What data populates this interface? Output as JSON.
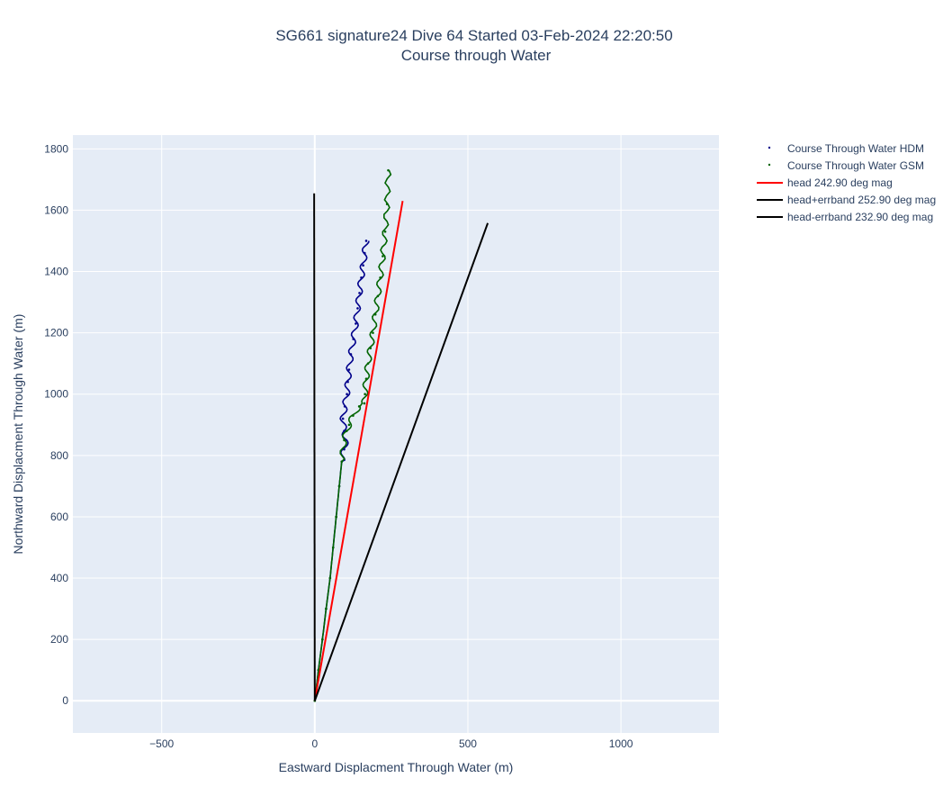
{
  "chart_data": {
    "type": "line",
    "title": "SG661 signature24 Dive 64 Started 03-Feb-2024 22:20:50",
    "subtitle": "Course through Water",
    "xlabel": "Eastward Displacment Through Water (m)",
    "ylabel": "Northward Displacment Through Water (m)",
    "xlim": [
      -790,
      1320
    ],
    "ylim": [
      -105,
      1845
    ],
    "xticks": [
      -500,
      0,
      500,
      1000
    ],
    "yticks": [
      0,
      200,
      400,
      600,
      800,
      1000,
      1200,
      1400,
      1600,
      1800
    ],
    "grid": true,
    "legend_position": "top-right, outside plot",
    "plot_bg_color": "#e5ecf6",
    "series": [
      {
        "name": "Course Through Water HDM",
        "mode": "markers+wavy-line",
        "color": "#00008b",
        "x": [
          0,
          12,
          25,
          37,
          50,
          60,
          70,
          80,
          88,
          96,
          102,
          96,
          92,
          98,
          105,
          108,
          112,
          118,
          126,
          134,
          140,
          146,
          152,
          158,
          163,
          168
        ],
        "y": [
          0,
          100,
          200,
          300,
          400,
          500,
          600,
          700,
          780,
          820,
          850,
          880,
          920,
          960,
          1000,
          1040,
          1080,
          1130,
          1180,
          1230,
          1280,
          1330,
          1380,
          1420,
          1460,
          1500
        ]
      },
      {
        "name": "Course Through Water GSM",
        "mode": "markers+wavy-line",
        "color": "#006400",
        "x": [
          0,
          12,
          25,
          37,
          50,
          60,
          70,
          80,
          88,
          96,
          104,
          112,
          125,
          145,
          162,
          164,
          168,
          174,
          182,
          190,
          198,
          206,
          214,
          222,
          230,
          236,
          240
        ],
        "y": [
          0,
          100,
          200,
          300,
          400,
          500,
          600,
          700,
          780,
          850,
          880,
          900,
          930,
          960,
          970,
          1000,
          1050,
          1100,
          1150,
          1200,
          1260,
          1320,
          1380,
          1450,
          1530,
          1620,
          1730
        ]
      },
      {
        "name": "head 242.90 deg mag",
        "mode": "line",
        "color": "#ff0000",
        "x": [
          0,
          287
        ],
        "y": [
          0,
          1630
        ]
      },
      {
        "name": "head+errband 252.90 deg mag",
        "mode": "line",
        "color": "#000000",
        "x": [
          0,
          -2
        ],
        "y": [
          0,
          1655
        ]
      },
      {
        "name": "head-errband 232.90 deg mag",
        "mode": "line",
        "color": "#000000",
        "x": [
          0,
          565
        ],
        "y": [
          0,
          1558
        ]
      }
    ]
  }
}
